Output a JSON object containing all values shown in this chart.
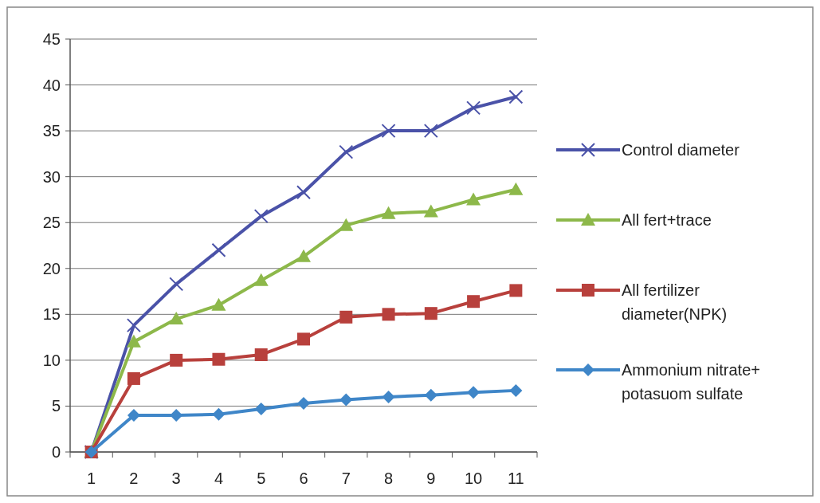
{
  "chart_data": {
    "type": "line",
    "categories": [
      "1",
      "2",
      "3",
      "4",
      "5",
      "6",
      "7",
      "8",
      "9",
      "10",
      "11"
    ],
    "series": [
      {
        "name": "Control diameter",
        "color": "#4a52a8",
        "marker": "cross",
        "values": [
          0,
          13.8,
          18.3,
          22,
          25.7,
          28.3,
          32.7,
          35,
          35,
          37.5,
          38.7
        ]
      },
      {
        "name": "All fert+trace",
        "color": "#8db84a",
        "marker": "triangle",
        "values": [
          0,
          12,
          14.5,
          16,
          18.7,
          21.3,
          24.7,
          26,
          26.2,
          27.5,
          28.6
        ]
      },
      {
        "name": "All fertilizer diameter(NPK)",
        "color": "#b8403c",
        "marker": "square",
        "values": [
          0,
          8,
          10,
          10.1,
          10.6,
          12.3,
          14.7,
          15,
          15.1,
          16.4,
          17.6
        ]
      },
      {
        "name": "Ammonium nitrate+ potasuom sulfate",
        "color": "#3f86c8",
        "marker": "diamond",
        "values": [
          0,
          4,
          4,
          4.1,
          4.7,
          5.3,
          5.7,
          6,
          6.2,
          6.5,
          6.7
        ]
      }
    ],
    "ylim": [
      0,
      45
    ],
    "yticks": [
      0,
      5,
      10,
      15,
      20,
      25,
      30,
      35,
      40,
      45
    ],
    "grid": "y",
    "legend": "right"
  }
}
